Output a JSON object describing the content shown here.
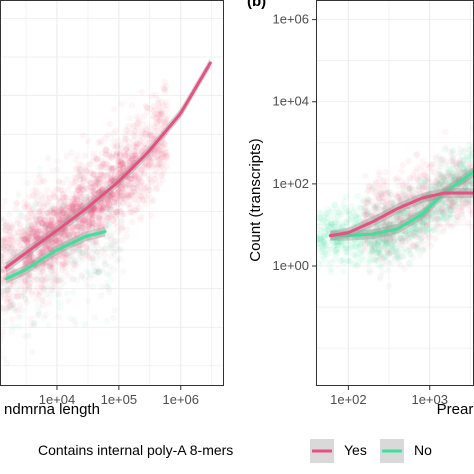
{
  "colors": {
    "yes": "#e8507f",
    "no": "#3fe09a",
    "grid": "#ebebeb",
    "panel_border": "#333333",
    "ribbon": "#9e9e9e"
  },
  "legend": {
    "title": "Contains internal poly-A 8-mers",
    "items": [
      "Yes",
      "No"
    ]
  },
  "chart_data": [
    {
      "type": "scatter",
      "panel_label": "",
      "xlabel": "ndmrna length",
      "ylabel": "",
      "x_scale": "log10",
      "x_ticks": [
        "1e+04",
        "1e+05",
        "1e+06"
      ],
      "x_tick_values": [
        10000,
        100000,
        1000000
      ],
      "xlim": [
        1200,
        5000000
      ],
      "ylim": [
        0.0003,
        3000000
      ],
      "y_scale": "log10",
      "y_ticks": [],
      "grid": true,
      "series": [
        {
          "name": "Yes",
          "fit_x": [
            1500,
            3000,
            10000,
            30000,
            100000,
            300000,
            1000000,
            3000000
          ],
          "fit_y": [
            0.35,
            0.8,
            3.2,
            12,
            60,
            350,
            3500,
            70000
          ]
        },
        {
          "name": "No",
          "fit_x": [
            1500,
            3000,
            10000,
            30000,
            60000
          ],
          "fit_y": [
            0.18,
            0.3,
            1.0,
            2.3,
            3.0
          ]
        }
      ]
    },
    {
      "type": "scatter",
      "panel_label": "(b)",
      "xlabel": "Prear",
      "ylabel": "Count (transcripts)",
      "x_scale": "log10",
      "x_ticks": [
        "1e+02",
        "1e+03"
      ],
      "x_tick_values": [
        100,
        1000
      ],
      "xlim": [
        40,
        3500
      ],
      "y_scale": "log10",
      "y_ticks": [
        "1e+00",
        "1e+02",
        "1e+04",
        "1e+06"
      ],
      "y_tick_values": [
        1,
        100,
        10000,
        1000000
      ],
      "ylim": [
        0.0012,
        3000000
      ],
      "grid": true,
      "series": [
        {
          "name": "Yes",
          "fit_x": [
            60,
            100,
            200,
            400,
            800,
            1500,
            3500
          ],
          "fit_y": [
            5.5,
            6.5,
            12,
            25,
            45,
            60,
            60
          ]
        },
        {
          "name": "No",
          "fit_x": [
            60,
            100,
            200,
            400,
            800,
            1500,
            3500
          ],
          "fit_y": [
            5.5,
            5.5,
            6,
            8,
            18,
            60,
            200
          ]
        }
      ]
    }
  ]
}
